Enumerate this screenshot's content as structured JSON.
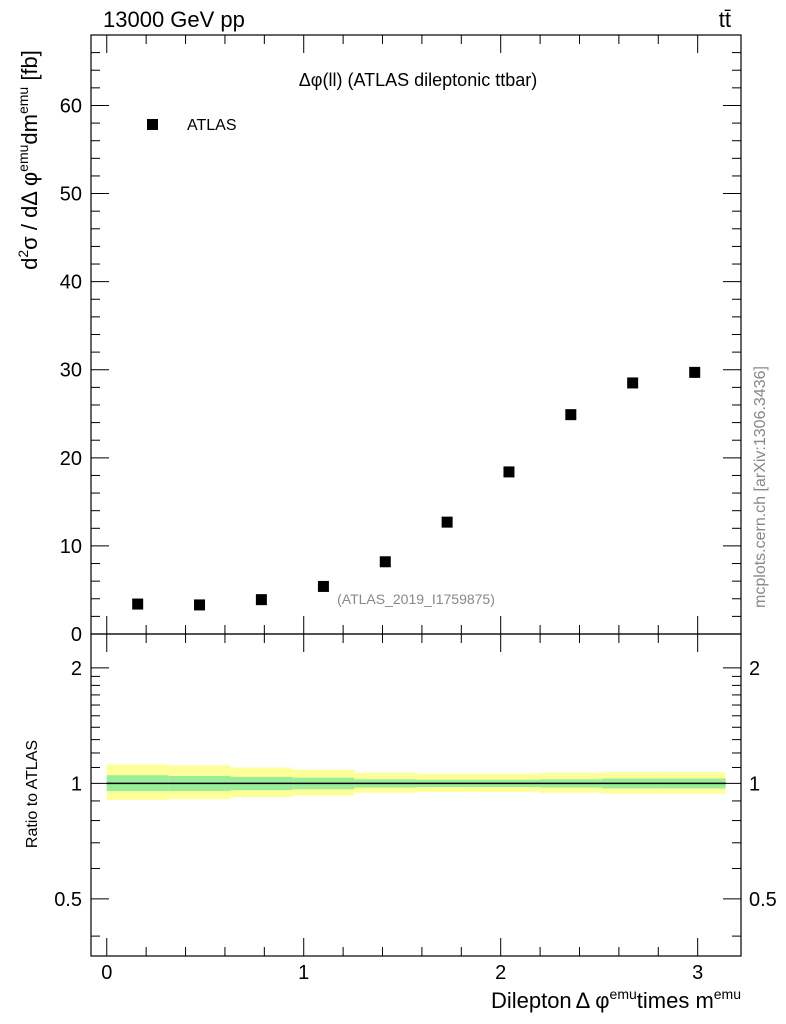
{
  "header": {
    "energy_label": "13000 GeV pp",
    "process_label": "tt̄"
  },
  "chart_data": [
    {
      "type": "scatter",
      "title": "Δφ(ll) (ATLAS dileptonic ttbar)",
      "ylabel": {
        "base": "d",
        "sup1": "2",
        "mid": "σ / dΔ φ",
        "sup2": "emu",
        "mid2": "dm",
        "sup3": "emu",
        "unit": " [fb]"
      },
      "xlim": [
        -0.08,
        3.22
      ],
      "ylim": [
        0,
        68
      ],
      "y_ticks": [
        0,
        10,
        20,
        30,
        40,
        50,
        60
      ],
      "legend": {
        "placement": "top-left",
        "entries": [
          "ATLAS"
        ]
      },
      "analysis_label": "(ATLAS_2019_I1759875)",
      "watermark": "mcplots.cern.ch [arXiv:1306.3436]",
      "series": [
        {
          "name": "ATLAS",
          "x": [
            0.157,
            0.471,
            0.785,
            1.1,
            1.414,
            1.728,
            2.042,
            2.356,
            2.67,
            2.985
          ],
          "y": [
            3.4,
            3.3,
            3.9,
            5.4,
            8.2,
            12.7,
            18.4,
            24.9,
            28.5,
            29.7
          ]
        }
      ]
    },
    {
      "type": "area",
      "ylabel": "Ratio to ATLAS",
      "xlabel": {
        "pre": "Dilepton",
        "mid": "Δ φ",
        "sup1": "emu",
        "mid2": "times m",
        "sup2": "emu"
      },
      "xlim": [
        -0.08,
        3.22
      ],
      "ylim": [
        0.355,
        2.45
      ],
      "log_y": true,
      "x_ticks": [
        0,
        1,
        2,
        3
      ],
      "y_ticks": [
        0.5,
        1,
        2
      ],
      "bin_edges": [
        0,
        0.314,
        0.628,
        0.942,
        1.257,
        1.571,
        1.885,
        2.199,
        2.513,
        2.827,
        3.142
      ],
      "reference_line": 1.0,
      "band_inner": {
        "color": "#99ee99",
        "low": [
          0.955,
          0.955,
          0.96,
          0.965,
          0.975,
          0.978,
          0.978,
          0.975,
          0.97,
          0.97
        ],
        "high": [
          1.05,
          1.045,
          1.04,
          1.035,
          1.025,
          1.022,
          1.022,
          1.025,
          1.03,
          1.03
        ]
      },
      "band_outer": {
        "color": "#ffff99",
        "low": [
          0.905,
          0.91,
          0.92,
          0.93,
          0.945,
          0.95,
          0.95,
          0.945,
          0.94,
          0.94
        ],
        "high": [
          1.12,
          1.115,
          1.1,
          1.085,
          1.065,
          1.06,
          1.06,
          1.065,
          1.07,
          1.07
        ]
      }
    }
  ]
}
